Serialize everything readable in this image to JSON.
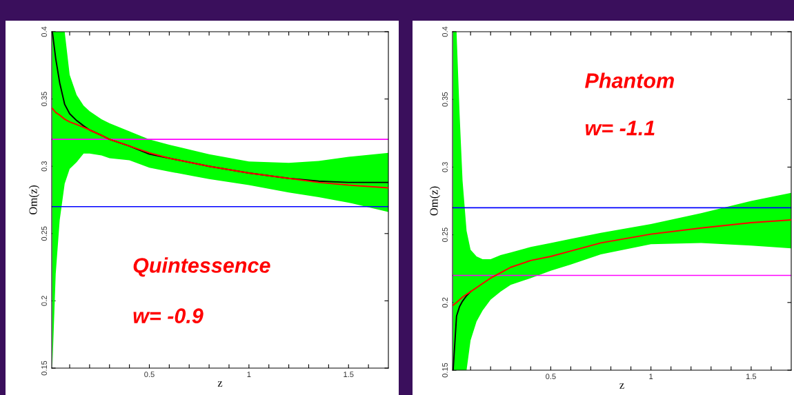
{
  "chart_data": [
    {
      "type": "line",
      "xlabel": "z",
      "ylabel": "Om(z)",
      "x": [
        0.013,
        0.03,
        0.05,
        0.075,
        0.1,
        0.135,
        0.17,
        0.2,
        0.26,
        0.3,
        0.4,
        0.5,
        0.6,
        0.8,
        1.0,
        1.2,
        1.35,
        1.5,
        1.7
      ],
      "series": [
        {
          "color": "#000000",
          "values": [
            0.4,
            0.38,
            0.362,
            0.346,
            0.339,
            0.334,
            0.33,
            0.327,
            0.323,
            0.32,
            0.315,
            0.309,
            0.306,
            0.3,
            0.295,
            0.291,
            0.289,
            0.288,
            0.288
          ],
          "lower": [
            0.15,
            0.22,
            0.26,
            0.287,
            0.298,
            0.303,
            0.3095,
            0.3095,
            0.308,
            0.306,
            0.3045,
            0.299,
            0.296,
            0.2905,
            0.286,
            0.2805,
            0.277,
            0.273,
            0.266
          ],
          "upper": [
            0.4,
            0.4,
            0.4,
            0.4,
            0.368,
            0.353,
            0.345,
            0.341,
            0.335,
            0.332,
            0.326,
            0.32,
            0.316,
            0.309,
            0.3035,
            0.3025,
            0.304,
            0.307,
            0.31
          ]
        },
        {
          "color": "#ff0000",
          "values": [
            0.343,
            0.34,
            0.338,
            0.335,
            0.333,
            0.331,
            0.329,
            0.327,
            0.323,
            0.32,
            0.315,
            0.31,
            0.306,
            0.3,
            0.295,
            0.291,
            0.288,
            0.286,
            0.284
          ]
        }
      ],
      "ref_lines": [
        {
          "axis": "y",
          "value": 0.32,
          "color": "#ff00ff"
        },
        {
          "axis": "y",
          "value": 0.27,
          "color": "#0000ff"
        }
      ],
      "annotations": [
        "Quintessence",
        "w= -0.9"
      ],
      "xlim": [
        0.01,
        1.7
      ],
      "ylim": [
        0.15,
        0.4
      ],
      "xticks": [
        {
          "value": 0.1,
          "label": null
        },
        {
          "value": 0.2,
          "label": null
        },
        {
          "value": 0.3,
          "label": null
        },
        {
          "value": 0.4,
          "label": null
        },
        0.5,
        {
          "value": 0.6,
          "label": null
        },
        {
          "value": 0.7,
          "label": null
        },
        {
          "value": 0.8,
          "label": null
        },
        {
          "value": 0.9,
          "label": null
        },
        1,
        {
          "value": 1.1,
          "label": null
        },
        {
          "value": 1.2,
          "label": null
        },
        {
          "value": 1.3,
          "label": null
        },
        {
          "value": 1.4,
          "label": null
        },
        1.5,
        {
          "value": 1.6,
          "label": null
        }
      ],
      "yticks": [
        0.15,
        0.2,
        0.25,
        0.3,
        0.35,
        0.4
      ],
      "grid": false,
      "legend": false
    },
    {
      "type": "line",
      "xlabel": "z",
      "ylabel": "Om(z)",
      "x": [
        0.013,
        0.03,
        0.045,
        0.06,
        0.08,
        0.1,
        0.13,
        0.16,
        0.2,
        0.25,
        0.3,
        0.4,
        0.5,
        0.6,
        0.75,
        1.0,
        1.25,
        1.5,
        1.7
      ],
      "series": [
        {
          "color": "#000000",
          "values": [
            0.15,
            0.19,
            0.197,
            0.201,
            0.205,
            0.208,
            null,
            null,
            null,
            null,
            null,
            null,
            null,
            null,
            null,
            null,
            null,
            null,
            null
          ],
          "lower": [
            0.15,
            0.15,
            0.15,
            0.15,
            0.15,
            0.172,
            0.186,
            0.194,
            0.202,
            0.208,
            0.213,
            0.218,
            0.2235,
            0.228,
            0.2356,
            0.243,
            0.244,
            0.242,
            0.24
          ],
          "upper": [
            0.4,
            0.4,
            0.34,
            0.29,
            0.253,
            0.239,
            0.234,
            0.232,
            0.232,
            0.235,
            0.237,
            0.241,
            0.244,
            0.247,
            0.2515,
            0.258,
            0.266,
            0.275,
            0.281
          ]
        },
        {
          "color": "#ff0000",
          "values": [
            0.198,
            0.2,
            0.202,
            0.204,
            0.206,
            0.208,
            0.211,
            0.214,
            0.218,
            0.222,
            0.226,
            0.231,
            0.234,
            0.238,
            0.244,
            0.2505,
            0.255,
            0.259,
            0.261
          ]
        }
      ],
      "ref_lines": [
        {
          "axis": "y",
          "value": 0.27,
          "color": "#0000ff"
        },
        {
          "axis": "y",
          "value": 0.22,
          "color": "#ff00ff"
        }
      ],
      "annotations": [
        "Phantom",
        "w= -1.1"
      ],
      "xlim": [
        0.01,
        1.7
      ],
      "ylim": [
        0.15,
        0.4
      ],
      "xticks": [
        {
          "value": 0.1,
          "label": null
        },
        {
          "value": 0.2,
          "label": null
        },
        {
          "value": 0.3,
          "label": null
        },
        {
          "value": 0.4,
          "label": null
        },
        0.5,
        {
          "value": 0.6,
          "label": null
        },
        {
          "value": 0.7,
          "label": null
        },
        {
          "value": 0.8,
          "label": null
        },
        {
          "value": 0.9,
          "label": null
        },
        1,
        {
          "value": 1.1,
          "label": null
        },
        {
          "value": 1.2,
          "label": null
        },
        {
          "value": 1.3,
          "label": null
        },
        {
          "value": 1.4,
          "label": null
        },
        1.5,
        {
          "value": 1.6,
          "label": null
        }
      ],
      "yticks": [
        0.15,
        0.2,
        0.25,
        0.3,
        0.35,
        0.4
      ],
      "grid": false,
      "legend": false
    }
  ]
}
